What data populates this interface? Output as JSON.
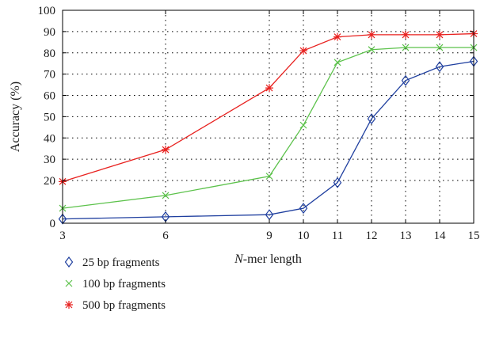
{
  "chart_data": {
    "type": "line",
    "title": "",
    "xlabel_prefix": "N",
    "xlabel_suffix": "-mer length",
    "ylabel": "Accuracy (%)",
    "x": [
      3,
      6,
      9,
      10,
      11,
      12,
      13,
      14,
      15
    ],
    "xlim": [
      3,
      15
    ],
    "ylim": [
      0,
      100
    ],
    "yticks": [
      0,
      20,
      30,
      40,
      50,
      60,
      70,
      80,
      90,
      100
    ],
    "grid": true,
    "legend_position": "below-left",
    "series": [
      {
        "name": "25 bp fragments",
        "color": "#1f3f9f",
        "marker": "diamond",
        "values": [
          2,
          3,
          4,
          7,
          19,
          49,
          67,
          73.5,
          76
        ]
      },
      {
        "name": "100 bp fragments",
        "color": "#5cc24b",
        "marker": "x",
        "values": [
          7,
          13,
          22,
          46,
          75.5,
          81.5,
          82.5,
          82.5,
          82.5
        ]
      },
      {
        "name": "500 bp fragments",
        "color": "#e8211f",
        "marker": "asterisk",
        "values": [
          19.5,
          34.5,
          63.5,
          81,
          87.5,
          88.5,
          88.5,
          88.5,
          89
        ]
      }
    ]
  }
}
